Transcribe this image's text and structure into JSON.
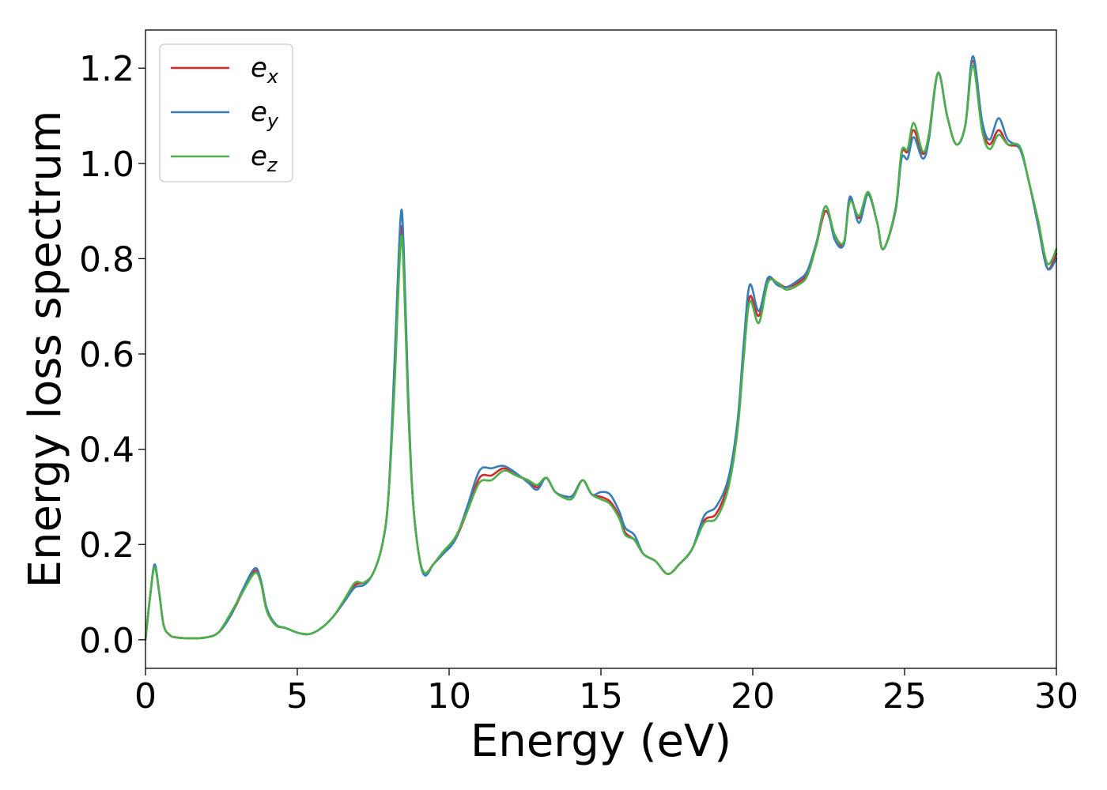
{
  "chart_data": {
    "type": "line",
    "xlabel": "Energy (eV)",
    "ylabel": "Energy loss spectrum",
    "xlim": [
      0,
      30
    ],
    "ylim": [
      -0.06,
      1.28
    ],
    "xticks": [
      0,
      5,
      10,
      15,
      20,
      25,
      30
    ],
    "xtick_labels": [
      "0",
      "5",
      "10",
      "15",
      "20",
      "25",
      "30"
    ],
    "yticks": [
      0.0,
      0.2,
      0.4,
      0.6,
      0.8,
      1.0,
      1.2
    ],
    "ytick_labels": [
      "0.0",
      "0.2",
      "0.4",
      "0.6",
      "0.8",
      "1.0",
      "1.2"
    ],
    "grid": false,
    "legend_position": "top-left",
    "series": [
      {
        "name": "e_x",
        "label_base": "e",
        "label_sub": "x",
        "color": "#d62728",
        "points": [
          [
            0,
            0.0
          ],
          [
            0.15,
            0.09
          ],
          [
            0.3,
            0.155
          ],
          [
            0.45,
            0.1
          ],
          [
            0.6,
            0.03
          ],
          [
            0.8,
            0.01
          ],
          [
            1.0,
            0.005
          ],
          [
            1.5,
            0.003
          ],
          [
            2.0,
            0.005
          ],
          [
            2.4,
            0.015
          ],
          [
            2.8,
            0.05
          ],
          [
            3.2,
            0.1
          ],
          [
            3.6,
            0.145
          ],
          [
            3.8,
            0.12
          ],
          [
            4.0,
            0.06
          ],
          [
            4.3,
            0.03
          ],
          [
            4.6,
            0.025
          ],
          [
            5.0,
            0.015
          ],
          [
            5.4,
            0.012
          ],
          [
            5.8,
            0.025
          ],
          [
            6.2,
            0.05
          ],
          [
            6.6,
            0.085
          ],
          [
            6.9,
            0.115
          ],
          [
            7.2,
            0.12
          ],
          [
            7.5,
            0.14
          ],
          [
            7.8,
            0.2
          ],
          [
            8.0,
            0.3
          ],
          [
            8.2,
            0.55
          ],
          [
            8.4,
            0.85
          ],
          [
            8.5,
            0.8
          ],
          [
            8.65,
            0.5
          ],
          [
            8.8,
            0.3
          ],
          [
            9.0,
            0.18
          ],
          [
            9.2,
            0.14
          ],
          [
            9.5,
            0.16
          ],
          [
            9.8,
            0.18
          ],
          [
            10.2,
            0.21
          ],
          [
            10.6,
            0.27
          ],
          [
            11.0,
            0.34
          ],
          [
            11.4,
            0.345
          ],
          [
            11.8,
            0.36
          ],
          [
            12.2,
            0.345
          ],
          [
            12.6,
            0.335
          ],
          [
            12.9,
            0.32
          ],
          [
            13.2,
            0.34
          ],
          [
            13.5,
            0.31
          ],
          [
            13.9,
            0.3
          ],
          [
            14.1,
            0.305
          ],
          [
            14.4,
            0.335
          ],
          [
            14.7,
            0.305
          ],
          [
            15.0,
            0.3
          ],
          [
            15.3,
            0.29
          ],
          [
            15.6,
            0.26
          ],
          [
            15.8,
            0.225
          ],
          [
            16.1,
            0.21
          ],
          [
            16.4,
            0.18
          ],
          [
            16.8,
            0.165
          ],
          [
            17.2,
            0.138
          ],
          [
            17.6,
            0.16
          ],
          [
            18.0,
            0.19
          ],
          [
            18.4,
            0.25
          ],
          [
            18.8,
            0.265
          ],
          [
            19.2,
            0.33
          ],
          [
            19.5,
            0.45
          ],
          [
            19.7,
            0.6
          ],
          [
            19.9,
            0.72
          ],
          [
            20.2,
            0.68
          ],
          [
            20.5,
            0.755
          ],
          [
            20.8,
            0.75
          ],
          [
            21.1,
            0.74
          ],
          [
            21.5,
            0.75
          ],
          [
            21.8,
            0.77
          ],
          [
            22.1,
            0.83
          ],
          [
            22.4,
            0.9
          ],
          [
            22.7,
            0.85
          ],
          [
            23.0,
            0.83
          ],
          [
            23.2,
            0.925
          ],
          [
            23.5,
            0.885
          ],
          [
            23.8,
            0.935
          ],
          [
            24.1,
            0.875
          ],
          [
            24.3,
            0.82
          ],
          [
            24.7,
            0.9
          ],
          [
            24.9,
            1.02
          ],
          [
            25.1,
            1.025
          ],
          [
            25.3,
            1.07
          ],
          [
            25.6,
            1.02
          ],
          [
            25.8,
            1.06
          ],
          [
            26.1,
            1.19
          ],
          [
            26.4,
            1.1
          ],
          [
            26.7,
            1.04
          ],
          [
            27.0,
            1.08
          ],
          [
            27.25,
            1.215
          ],
          [
            27.55,
            1.08
          ],
          [
            27.8,
            1.04
          ],
          [
            28.1,
            1.07
          ],
          [
            28.4,
            1.04
          ],
          [
            28.8,
            1.03
          ],
          [
            29.1,
            0.96
          ],
          [
            29.4,
            0.87
          ],
          [
            29.7,
            0.78
          ],
          [
            30.0,
            0.81
          ]
        ]
      },
      {
        "name": "e_y",
        "label_base": "e",
        "label_sub": "y",
        "color": "#377eb8",
        "points": [
          [
            0,
            0.0
          ],
          [
            0.15,
            0.09
          ],
          [
            0.3,
            0.158
          ],
          [
            0.45,
            0.1
          ],
          [
            0.6,
            0.03
          ],
          [
            0.8,
            0.01
          ],
          [
            1.0,
            0.005
          ],
          [
            1.5,
            0.003
          ],
          [
            2.0,
            0.005
          ],
          [
            2.4,
            0.015
          ],
          [
            2.8,
            0.05
          ],
          [
            3.2,
            0.105
          ],
          [
            3.6,
            0.15
          ],
          [
            3.8,
            0.125
          ],
          [
            4.0,
            0.065
          ],
          [
            4.3,
            0.032
          ],
          [
            4.6,
            0.025
          ],
          [
            5.0,
            0.015
          ],
          [
            5.4,
            0.012
          ],
          [
            5.8,
            0.025
          ],
          [
            6.2,
            0.05
          ],
          [
            6.6,
            0.085
          ],
          [
            6.9,
            0.11
          ],
          [
            7.2,
            0.115
          ],
          [
            7.5,
            0.14
          ],
          [
            7.8,
            0.2
          ],
          [
            8.0,
            0.3
          ],
          [
            8.2,
            0.58
          ],
          [
            8.4,
            0.885
          ],
          [
            8.5,
            0.83
          ],
          [
            8.65,
            0.52
          ],
          [
            8.8,
            0.3
          ],
          [
            9.0,
            0.18
          ],
          [
            9.2,
            0.135
          ],
          [
            9.5,
            0.16
          ],
          [
            9.8,
            0.18
          ],
          [
            10.2,
            0.21
          ],
          [
            10.6,
            0.28
          ],
          [
            11.0,
            0.355
          ],
          [
            11.4,
            0.36
          ],
          [
            11.8,
            0.365
          ],
          [
            12.2,
            0.35
          ],
          [
            12.6,
            0.33
          ],
          [
            12.9,
            0.315
          ],
          [
            13.2,
            0.34
          ],
          [
            13.5,
            0.31
          ],
          [
            13.9,
            0.3
          ],
          [
            14.1,
            0.305
          ],
          [
            14.4,
            0.335
          ],
          [
            14.7,
            0.305
          ],
          [
            15.0,
            0.31
          ],
          [
            15.3,
            0.305
          ],
          [
            15.6,
            0.27
          ],
          [
            15.8,
            0.235
          ],
          [
            16.1,
            0.22
          ],
          [
            16.4,
            0.18
          ],
          [
            16.8,
            0.165
          ],
          [
            17.2,
            0.138
          ],
          [
            17.6,
            0.16
          ],
          [
            18.0,
            0.19
          ],
          [
            18.4,
            0.26
          ],
          [
            18.8,
            0.28
          ],
          [
            19.2,
            0.34
          ],
          [
            19.5,
            0.46
          ],
          [
            19.7,
            0.62
          ],
          [
            19.9,
            0.745
          ],
          [
            20.2,
            0.69
          ],
          [
            20.5,
            0.76
          ],
          [
            20.8,
            0.745
          ],
          [
            21.1,
            0.74
          ],
          [
            21.5,
            0.755
          ],
          [
            21.8,
            0.775
          ],
          [
            22.1,
            0.835
          ],
          [
            22.4,
            0.91
          ],
          [
            22.7,
            0.84
          ],
          [
            23.0,
            0.83
          ],
          [
            23.2,
            0.93
          ],
          [
            23.5,
            0.875
          ],
          [
            23.8,
            0.935
          ],
          [
            24.1,
            0.875
          ],
          [
            24.3,
            0.82
          ],
          [
            24.7,
            0.9
          ],
          [
            24.9,
            1.01
          ],
          [
            25.1,
            1.01
          ],
          [
            25.3,
            1.055
          ],
          [
            25.6,
            1.01
          ],
          [
            25.8,
            1.05
          ],
          [
            26.1,
            1.19
          ],
          [
            26.4,
            1.1
          ],
          [
            26.7,
            1.04
          ],
          [
            27.0,
            1.08
          ],
          [
            27.25,
            1.225
          ],
          [
            27.55,
            1.09
          ],
          [
            27.8,
            1.05
          ],
          [
            28.1,
            1.095
          ],
          [
            28.4,
            1.05
          ],
          [
            28.8,
            1.03
          ],
          [
            29.1,
            0.96
          ],
          [
            29.4,
            0.87
          ],
          [
            29.7,
            0.78
          ],
          [
            30.0,
            0.8
          ]
        ]
      },
      {
        "name": "e_z",
        "label_base": "e",
        "label_sub": "z",
        "color": "#4daf4a",
        "points": [
          [
            0,
            0.0
          ],
          [
            0.15,
            0.09
          ],
          [
            0.3,
            0.152
          ],
          [
            0.45,
            0.1
          ],
          [
            0.6,
            0.03
          ],
          [
            0.8,
            0.01
          ],
          [
            1.0,
            0.005
          ],
          [
            1.5,
            0.003
          ],
          [
            2.0,
            0.005
          ],
          [
            2.4,
            0.015
          ],
          [
            2.8,
            0.055
          ],
          [
            3.2,
            0.1
          ],
          [
            3.6,
            0.14
          ],
          [
            3.8,
            0.12
          ],
          [
            4.0,
            0.06
          ],
          [
            4.3,
            0.03
          ],
          [
            4.6,
            0.025
          ],
          [
            5.0,
            0.015
          ],
          [
            5.4,
            0.012
          ],
          [
            5.8,
            0.025
          ],
          [
            6.2,
            0.05
          ],
          [
            6.6,
            0.09
          ],
          [
            6.9,
            0.12
          ],
          [
            7.2,
            0.12
          ],
          [
            7.5,
            0.14
          ],
          [
            7.8,
            0.2
          ],
          [
            8.0,
            0.3
          ],
          [
            8.2,
            0.53
          ],
          [
            8.4,
            0.83
          ],
          [
            8.5,
            0.78
          ],
          [
            8.65,
            0.49
          ],
          [
            8.8,
            0.3
          ],
          [
            9.0,
            0.18
          ],
          [
            9.2,
            0.14
          ],
          [
            9.5,
            0.16
          ],
          [
            9.8,
            0.185
          ],
          [
            10.2,
            0.215
          ],
          [
            10.6,
            0.27
          ],
          [
            11.0,
            0.33
          ],
          [
            11.4,
            0.335
          ],
          [
            11.8,
            0.355
          ],
          [
            12.2,
            0.345
          ],
          [
            12.6,
            0.335
          ],
          [
            12.9,
            0.325
          ],
          [
            13.2,
            0.34
          ],
          [
            13.5,
            0.31
          ],
          [
            13.9,
            0.295
          ],
          [
            14.1,
            0.3
          ],
          [
            14.4,
            0.335
          ],
          [
            14.7,
            0.305
          ],
          [
            15.0,
            0.295
          ],
          [
            15.3,
            0.285
          ],
          [
            15.6,
            0.255
          ],
          [
            15.8,
            0.22
          ],
          [
            16.1,
            0.21
          ],
          [
            16.4,
            0.18
          ],
          [
            16.8,
            0.165
          ],
          [
            17.2,
            0.138
          ],
          [
            17.6,
            0.16
          ],
          [
            18.0,
            0.19
          ],
          [
            18.4,
            0.245
          ],
          [
            18.8,
            0.255
          ],
          [
            19.2,
            0.32
          ],
          [
            19.5,
            0.44
          ],
          [
            19.7,
            0.59
          ],
          [
            19.9,
            0.71
          ],
          [
            20.2,
            0.665
          ],
          [
            20.5,
            0.75
          ],
          [
            20.8,
            0.75
          ],
          [
            21.1,
            0.735
          ],
          [
            21.5,
            0.745
          ],
          [
            21.8,
            0.765
          ],
          [
            22.1,
            0.83
          ],
          [
            22.4,
            0.91
          ],
          [
            22.7,
            0.85
          ],
          [
            23.0,
            0.835
          ],
          [
            23.2,
            0.92
          ],
          [
            23.5,
            0.89
          ],
          [
            23.8,
            0.94
          ],
          [
            24.1,
            0.875
          ],
          [
            24.3,
            0.82
          ],
          [
            24.7,
            0.905
          ],
          [
            24.9,
            1.025
          ],
          [
            25.1,
            1.03
          ],
          [
            25.3,
            1.085
          ],
          [
            25.6,
            1.025
          ],
          [
            25.8,
            1.06
          ],
          [
            26.1,
            1.19
          ],
          [
            26.4,
            1.1
          ],
          [
            26.7,
            1.04
          ],
          [
            27.0,
            1.08
          ],
          [
            27.25,
            1.205
          ],
          [
            27.55,
            1.07
          ],
          [
            27.8,
            1.03
          ],
          [
            28.1,
            1.06
          ],
          [
            28.4,
            1.04
          ],
          [
            28.8,
            1.035
          ],
          [
            29.1,
            0.96
          ],
          [
            29.4,
            0.88
          ],
          [
            29.7,
            0.79
          ],
          [
            30.0,
            0.82
          ]
        ]
      }
    ]
  }
}
